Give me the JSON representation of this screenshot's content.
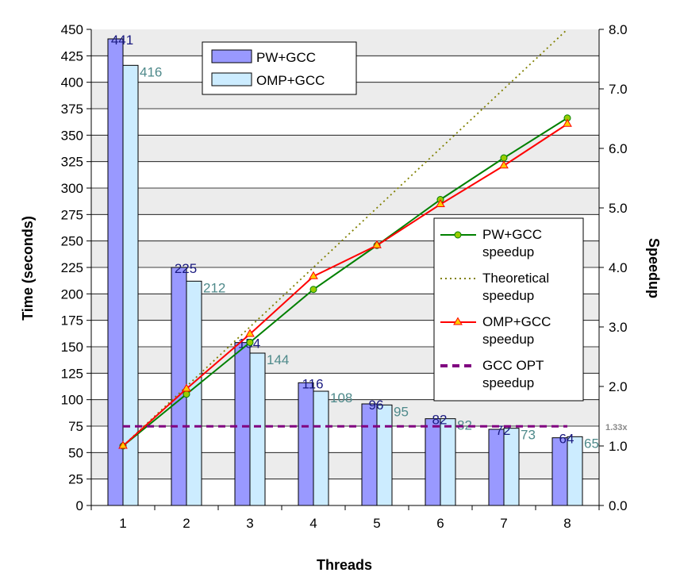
{
  "chart_data": {
    "type": "bar",
    "xlabel": "Threads",
    "ylabel": "Time (seconds)",
    "y2label": "Speedup",
    "categories": [
      "1",
      "2",
      "3",
      "4",
      "5",
      "6",
      "7",
      "8"
    ],
    "ylim": [
      0,
      450
    ],
    "ytick_step": 25,
    "y2lim": [
      0,
      8
    ],
    "y2tick_step": 1,
    "y2tick_decimals": 1,
    "grid": true,
    "series": [
      {
        "name": "PW+GCC",
        "kind": "bar",
        "axis": "left",
        "color": "#9999ff",
        "values": [
          441,
          225,
          154,
          116,
          96,
          82,
          72,
          64
        ]
      },
      {
        "name": "OMP+GCC",
        "kind": "bar",
        "axis": "left",
        "color": "#ccecff",
        "values": [
          416,
          212,
          144,
          108,
          95,
          82,
          73,
          65
        ]
      },
      {
        "name": "PW+GCC speedup",
        "kind": "line",
        "axis": "right",
        "color": "#008000",
        "marker": "circle",
        "marker_fill": "#99cc00",
        "values": [
          1.0,
          1.87,
          2.74,
          3.63,
          4.37,
          5.14,
          5.84,
          6.51
        ]
      },
      {
        "name": "Theoretical speedup",
        "kind": "line",
        "axis": "right",
        "color": "#808000",
        "dash": "dotted",
        "values": [
          1,
          2,
          3,
          4,
          5,
          6,
          7,
          8
        ]
      },
      {
        "name": "OMP+GCC speedup",
        "kind": "line",
        "axis": "right",
        "color": "#ff0000",
        "marker": "triangle",
        "marker_fill": "#ffcc00",
        "values": [
          1.0,
          1.96,
          2.88,
          3.85,
          4.37,
          5.06,
          5.71,
          6.41
        ]
      },
      {
        "name": "GCC OPT speedup",
        "kind": "line",
        "axis": "right",
        "color": "#800080",
        "dash": "dashed",
        "value": 1.33
      }
    ],
    "reference_label": "1.33x",
    "legend_bars": [
      "PW+GCC",
      "OMP+GCC"
    ],
    "legend_lines": [
      [
        "PW+GCC",
        "speedup"
      ],
      [
        "Theoretical",
        "speedup"
      ],
      [
        "OMP+GCC",
        "speedup"
      ],
      [
        "GCC OPT",
        "speedup"
      ]
    ]
  }
}
